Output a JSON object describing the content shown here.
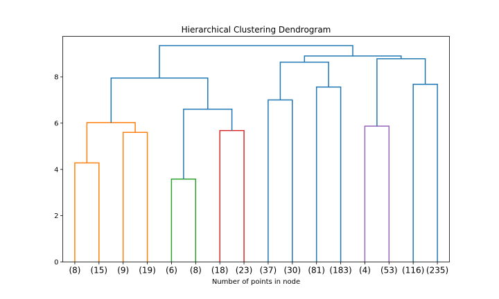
{
  "chart_data": {
    "type": "dendrogram",
    "title": "Hierarchical Clustering Dendrogram",
    "xlabel": "Number of points in node",
    "ylabel": "",
    "ylim": [
      0,
      9.75
    ],
    "yticks": [
      0,
      2,
      4,
      6,
      8
    ],
    "leaves": [
      "(8)",
      "(15)",
      "(9)",
      "(19)",
      "(6)",
      "(8)",
      "(18)",
      "(23)",
      "(37)",
      "(30)",
      "(81)",
      "(183)",
      "(4)",
      "(53)",
      "(116)",
      "(235)"
    ],
    "links": [
      {
        "left": 0,
        "right": 1,
        "height": 4.28,
        "color": "#ff7f0e"
      },
      {
        "left": 2,
        "right": 3,
        "height": 5.6,
        "color": "#ff7f0e"
      },
      {
        "left": 16,
        "right": 17,
        "height": 6.02,
        "color": "#ff7f0e"
      },
      {
        "left": 4,
        "right": 5,
        "height": 3.58,
        "color": "#2ca02c"
      },
      {
        "left": 6,
        "right": 7,
        "height": 5.68,
        "color": "#d62728"
      },
      {
        "left": 19,
        "right": 20,
        "height": 6.6,
        "color": "#1f77b4"
      },
      {
        "left": 18,
        "right": 21,
        "height": 7.95,
        "color": "#1f77b4"
      },
      {
        "left": 8,
        "right": 9,
        "height": 7.0,
        "color": "#1f77b4"
      },
      {
        "left": 10,
        "right": 11,
        "height": 7.56,
        "color": "#1f77b4"
      },
      {
        "left": 23,
        "right": 24,
        "height": 8.63,
        "color": "#1f77b4"
      },
      {
        "left": 12,
        "right": 13,
        "height": 5.87,
        "color": "#9467bd"
      },
      {
        "left": 14,
        "right": 15,
        "height": 7.68,
        "color": "#1f77b4"
      },
      {
        "left": 26,
        "right": 27,
        "height": 8.78,
        "color": "#1f77b4"
      },
      {
        "left": 25,
        "right": 28,
        "height": 8.9,
        "color": "#1f77b4"
      },
      {
        "left": 22,
        "right": 29,
        "height": 9.35,
        "color": "#1f77b4"
      }
    ],
    "grid": false,
    "legend": "none"
  }
}
